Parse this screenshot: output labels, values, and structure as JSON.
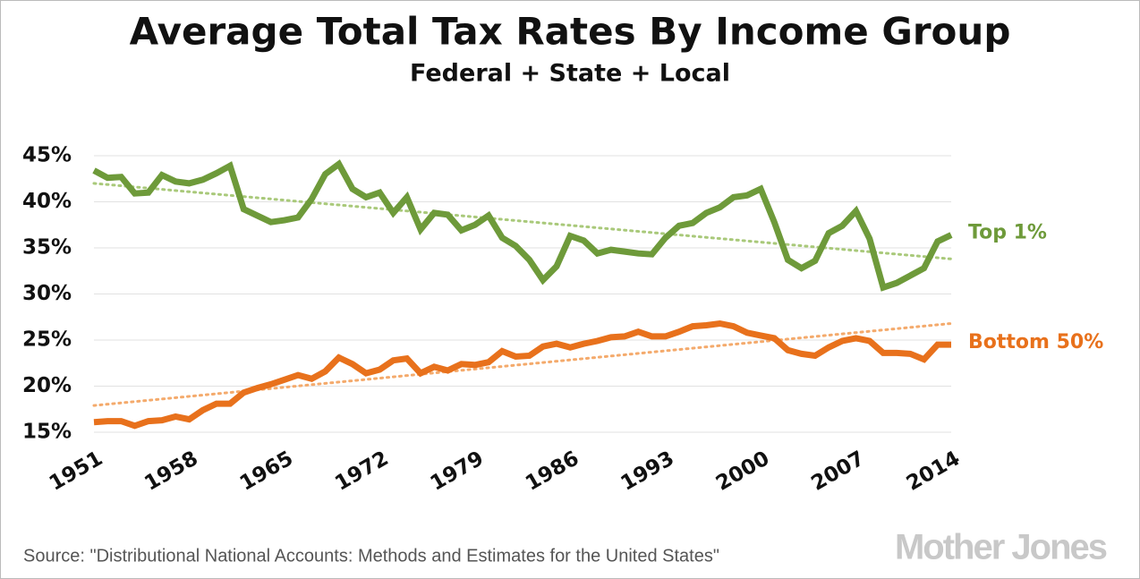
{
  "chart_data": {
    "type": "line",
    "title": "Average Total Tax Rates By Income Group",
    "subtitle": "Federal + State + Local",
    "source": "Source: \"Distributional National Accounts: Methods and Estimates for the United States\"",
    "logo": "Mother Jones",
    "x": [
      1951,
      1952,
      1953,
      1954,
      1955,
      1956,
      1957,
      1958,
      1959,
      1960,
      1961,
      1962,
      1963,
      1964,
      1965,
      1966,
      1967,
      1968,
      1969,
      1970,
      1971,
      1972,
      1973,
      1974,
      1975,
      1976,
      1977,
      1978,
      1979,
      1980,
      1981,
      1982,
      1983,
      1984,
      1985,
      1986,
      1987,
      1988,
      1989,
      1990,
      1991,
      1992,
      1993,
      1994,
      1995,
      1996,
      1997,
      1998,
      1999,
      2000,
      2001,
      2002,
      2003,
      2004,
      2005,
      2006,
      2007,
      2008,
      2009,
      2010,
      2011,
      2012,
      2013,
      2014
    ],
    "series": [
      {
        "name": "Top 1%",
        "color": "#6e9a3a",
        "trend_color": "#a9c97a",
        "trend": [
          42.0,
          33.8
        ],
        "values": [
          43.4,
          42.6,
          42.7,
          40.9,
          41.0,
          42.9,
          42.2,
          42.0,
          42.4,
          43.1,
          43.9,
          39.2,
          38.5,
          37.8,
          38.0,
          38.3,
          40.3,
          43.0,
          44.1,
          41.4,
          40.5,
          41.0,
          38.8,
          40.5,
          37.0,
          38.8,
          38.6,
          36.9,
          37.5,
          38.5,
          36.1,
          35.2,
          33.7,
          31.5,
          33.0,
          36.3,
          35.8,
          34.4,
          34.8,
          34.6,
          34.4,
          34.3,
          36.1,
          37.4,
          37.7,
          38.8,
          39.4,
          40.5,
          40.7,
          41.4,
          37.8,
          33.7,
          32.8,
          33.6,
          36.6,
          37.4,
          39.0,
          36.0,
          30.7,
          31.2,
          32.0,
          32.8,
          35.7,
          36.4
        ]
      },
      {
        "name": "Bottom 50%",
        "color": "#e8711c",
        "trend_color": "#f4aa6c",
        "trend": [
          17.9,
          26.8
        ],
        "values": [
          16.1,
          16.2,
          16.2,
          15.7,
          16.2,
          16.3,
          16.7,
          16.4,
          17.4,
          18.1,
          18.1,
          19.3,
          19.8,
          20.2,
          20.7,
          21.2,
          20.8,
          21.6,
          23.1,
          22.4,
          21.4,
          21.8,
          22.8,
          23.0,
          21.4,
          22.1,
          21.7,
          22.4,
          22.3,
          22.6,
          23.8,
          23.2,
          23.3,
          24.3,
          24.6,
          24.2,
          24.6,
          24.9,
          25.3,
          25.4,
          25.9,
          25.4,
          25.4,
          25.9,
          26.5,
          26.6,
          26.8,
          26.5,
          25.8,
          25.5,
          25.2,
          23.9,
          23.5,
          23.3,
          24.2,
          24.9,
          25.2,
          24.9,
          23.6,
          23.6,
          23.5,
          22.9,
          24.5,
          24.5
        ]
      }
    ],
    "xlim": [
      1951,
      2014
    ],
    "xticks": [
      1951,
      1958,
      1965,
      1972,
      1979,
      1986,
      1993,
      2000,
      2007,
      2014
    ],
    "ylim": [
      15,
      45
    ],
    "yticks": [
      {
        "value": 15,
        "label": "15%"
      },
      {
        "value": 20,
        "label": "20%"
      },
      {
        "value": 25,
        "label": "25%"
      },
      {
        "value": 30,
        "label": "30%"
      },
      {
        "value": 35,
        "label": "35%"
      },
      {
        "value": 40,
        "label": "40%"
      },
      {
        "value": 45,
        "label": "45%"
      }
    ],
    "grid": true
  }
}
